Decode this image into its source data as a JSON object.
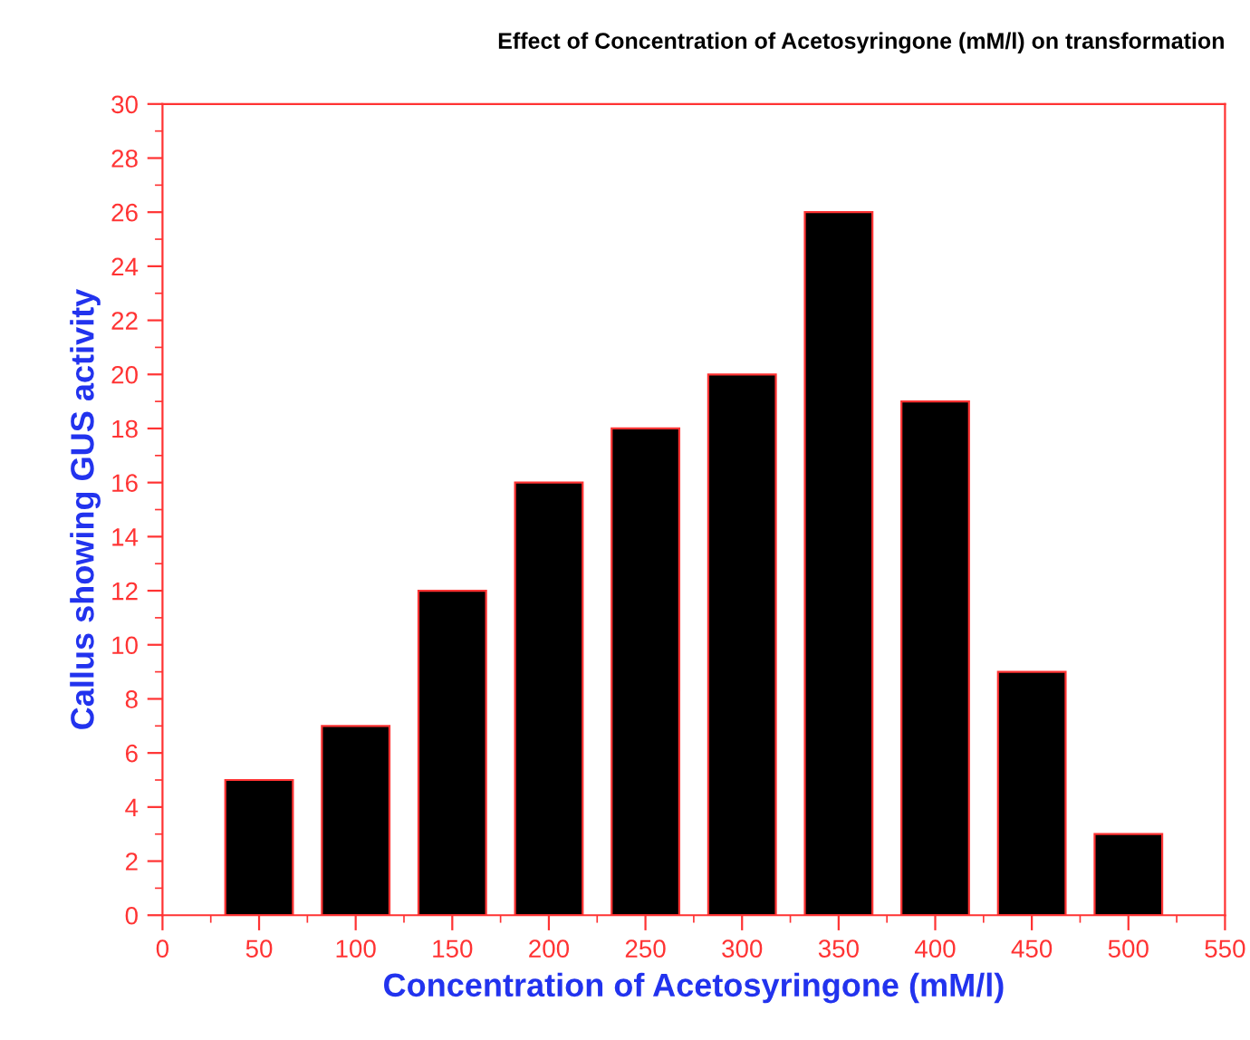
{
  "chart_data": {
    "type": "bar",
    "title": "Effect of Concentration of Acetosyringone (mM/l) on transformation",
    "xlabel": "Concentration of Acetosyringone (mM/l)",
    "ylabel": "Callus showing GUS activity",
    "x": [
      50,
      100,
      150,
      200,
      250,
      300,
      350,
      400,
      450,
      500
    ],
    "values": [
      5,
      7,
      12,
      16,
      18,
      20,
      26,
      19,
      9,
      3
    ],
    "color": "#000000",
    "xlim": [
      0,
      550
    ],
    "xticks": [
      0,
      50,
      100,
      150,
      200,
      250,
      300,
      350,
      400,
      450,
      500,
      550
    ],
    "ylim": [
      0,
      30
    ],
    "yticks": [
      0,
      2,
      4,
      6,
      8,
      10,
      12,
      14,
      16,
      18,
      20,
      22,
      24,
      26,
      28,
      30
    ],
    "grid": false,
    "legend": false
  }
}
